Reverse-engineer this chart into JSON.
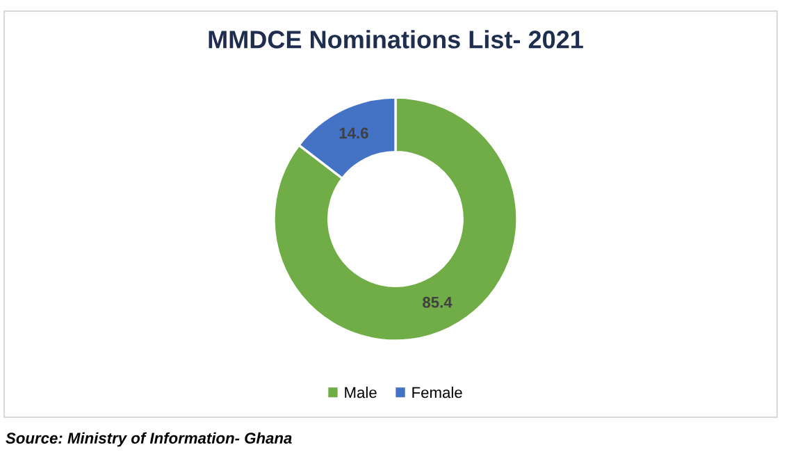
{
  "chart_data": {
    "type": "donut",
    "title": "MMDCE Nominations List- 2021",
    "categories": [
      "Male",
      "Female"
    ],
    "values": [
      85.4,
      14.6
    ],
    "colors": [
      "#70ad47",
      "#4472c4"
    ],
    "data_labels": true,
    "legend": "bottom",
    "annotations": [
      "Source: Ministry of Information- Ghana"
    ]
  }
}
